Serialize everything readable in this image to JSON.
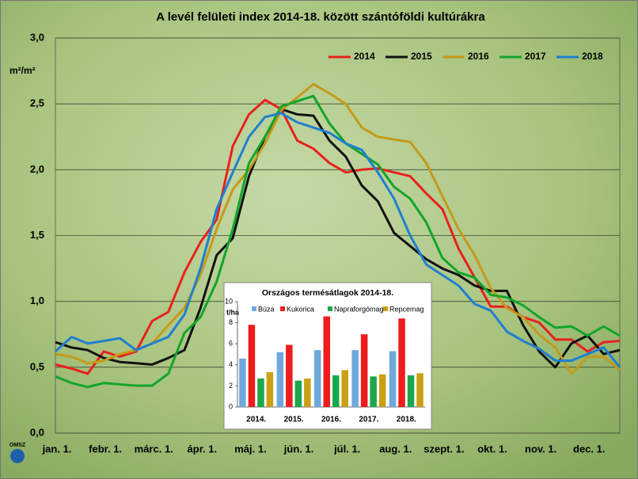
{
  "chart_data": [
    {
      "type": "line",
      "title": "A levél felületi index 2014-18. között szántóföldi kultúrákra",
      "y_label": "m²/m²",
      "logo_text": "OMSZ",
      "categories": [
        "jan. 1.",
        null,
        null,
        "febr. 1.",
        null,
        null,
        "márc. 1.",
        null,
        null,
        "ápr. 1.",
        null,
        null,
        "máj. 1.",
        null,
        null,
        "jún. 1.",
        null,
        null,
        "júl. 1.",
        null,
        null,
        "aug. 1.",
        null,
        null,
        "szept. 1.",
        null,
        null,
        "okt. 1.",
        null,
        null,
        "nov. 1.",
        null,
        null,
        "dec. 1.",
        null,
        null
      ],
      "series": [
        {
          "name": "2014",
          "color": "#e8211c",
          "values": [
            0.52,
            0.49,
            0.45,
            0.62,
            0.58,
            0.62,
            0.85,
            0.92,
            1.22,
            1.45,
            1.62,
            2.18,
            2.42,
            2.53,
            2.46,
            2.22,
            2.16,
            2.05,
            1.98,
            2.0,
            2.01,
            1.98,
            1.95,
            1.82,
            1.7,
            1.4,
            1.18,
            0.96,
            0.96,
            0.88,
            0.84,
            0.71,
            0.71,
            0.62,
            0.69,
            0.7
          ]
        },
        {
          "name": "2015",
          "color": "#111111",
          "values": [
            0.69,
            0.65,
            0.63,
            0.57,
            0.54,
            0.53,
            0.52,
            0.57,
            0.63,
            0.95,
            1.35,
            1.48,
            1.95,
            2.25,
            2.46,
            2.42,
            2.41,
            2.22,
            2.1,
            1.88,
            1.76,
            1.52,
            1.42,
            1.32,
            1.25,
            1.2,
            1.12,
            1.08,
            1.08,
            0.82,
            0.62,
            0.5,
            0.68,
            0.74,
            0.6,
            0.63
          ]
        },
        {
          "name": "2016",
          "color": "#c49a1a",
          "values": [
            0.6,
            0.58,
            0.53,
            0.55,
            0.6,
            0.63,
            0.68,
            0.82,
            0.95,
            1.2,
            1.55,
            1.85,
            2.0,
            2.2,
            2.45,
            2.55,
            2.65,
            2.58,
            2.5,
            2.32,
            2.25,
            2.23,
            2.21,
            2.05,
            1.8,
            1.55,
            1.35,
            1.1,
            0.95,
            0.88,
            0.75,
            0.65,
            0.45,
            0.58,
            0.58,
            0.48
          ]
        },
        {
          "name": "2017",
          "color": "#12a52a",
          "values": [
            0.43,
            0.38,
            0.35,
            0.38,
            0.37,
            0.36,
            0.36,
            0.45,
            0.76,
            0.88,
            1.15,
            1.55,
            2.05,
            2.25,
            2.48,
            2.52,
            2.56,
            2.35,
            2.2,
            2.12,
            2.04,
            1.87,
            1.78,
            1.6,
            1.33,
            1.22,
            1.18,
            1.05,
            1.03,
            0.97,
            0.88,
            0.8,
            0.81,
            0.74,
            0.81,
            0.74
          ]
        },
        {
          "name": "2018",
          "color": "#1f7fcf",
          "values": [
            0.62,
            0.73,
            0.68,
            0.7,
            0.72,
            0.63,
            0.68,
            0.73,
            0.9,
            1.25,
            1.7,
            1.98,
            2.25,
            2.4,
            2.43,
            2.36,
            2.32,
            2.28,
            2.2,
            2.15,
            1.98,
            1.78,
            1.5,
            1.28,
            1.2,
            1.12,
            0.98,
            0.93,
            0.77,
            0.7,
            0.64,
            0.55,
            0.55,
            0.6,
            0.65,
            0.5
          ]
        }
      ],
      "ylim": [
        0,
        3
      ],
      "yticks": [
        {
          "value": 0,
          "label": "0,0"
        },
        {
          "value": 0.5,
          "label": "0,5"
        },
        {
          "value": 1,
          "label": "1,0"
        },
        {
          "value": 1.5,
          "label": "1,5"
        },
        {
          "value": 2,
          "label": "2,0"
        },
        {
          "value": 2.5,
          "label": "2,5"
        },
        {
          "value": 3,
          "label": "3,0"
        }
      ],
      "grid": true,
      "legend": "top-right"
    },
    {
      "type": "bar",
      "title": "Országos termésátlagok 2014-18.",
      "y_label": "t/ha",
      "categories": [
        "2014.",
        "2015.",
        "2016.",
        "2017.",
        "2018."
      ],
      "series": [
        {
          "name": "Búza",
          "color": "#6fa8dc",
          "values": [
            4.6,
            5.2,
            5.4,
            5.4,
            5.3
          ]
        },
        {
          "name": "Kukorica",
          "color": "#ee1c1c",
          "values": [
            7.8,
            5.9,
            8.6,
            6.9,
            8.4
          ]
        },
        {
          "name": "Napraforgómag",
          "color": "#1aa84a",
          "values": [
            2.7,
            2.5,
            3.0,
            2.9,
            3.0
          ]
        },
        {
          "name": "Repcemag",
          "color": "#c9a013",
          "values": [
            3.3,
            2.7,
            3.5,
            3.1,
            3.2
          ]
        }
      ],
      "ylim": [
        0,
        10
      ],
      "yticks": [
        0,
        2,
        4,
        6,
        8,
        10
      ],
      "legend": "top"
    }
  ]
}
